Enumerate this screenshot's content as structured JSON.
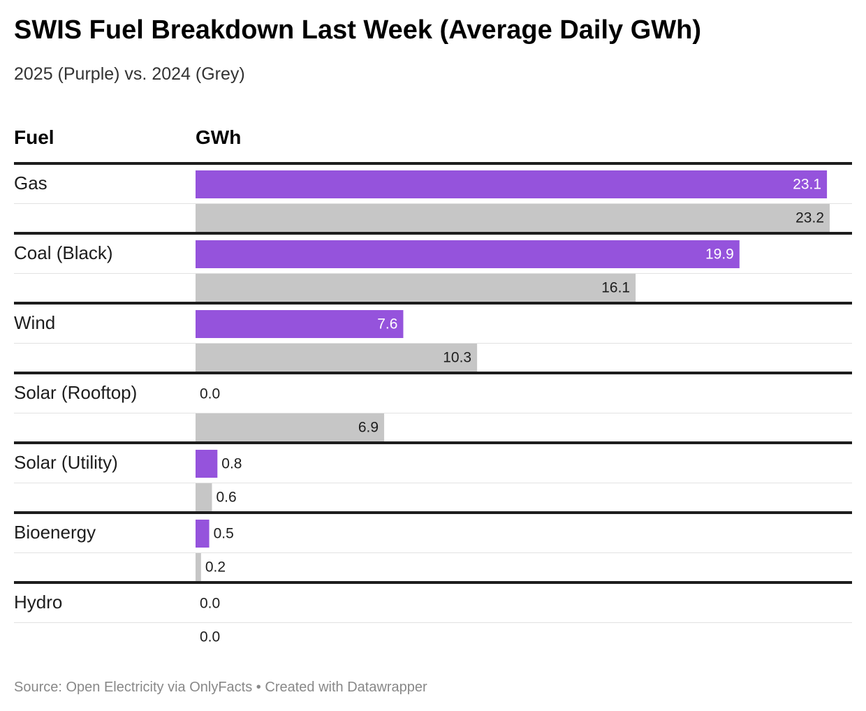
{
  "title": "SWIS Fuel Breakdown Last Week (Average Daily GWh)",
  "subtitle": "2025 (Purple) vs. 2024 (Grey)",
  "headers": {
    "fuel": "Fuel",
    "value": "GWh"
  },
  "footer": {
    "source": "Source: Open Electricity via OnlyFacts",
    "separator": "•",
    "credit": "Created with Datawrapper"
  },
  "colors": {
    "series_2025": "#9553dc",
    "series_2024": "#c6c6c6",
    "label_on_purple": "#ffffff",
    "label_on_grey": "#1d1d1d",
    "group_rule": "#1d1d1d",
    "row_rule": "#e2e2e2"
  },
  "chart_data": {
    "type": "bar",
    "orientation": "horizontal",
    "categories": [
      "Gas",
      "Coal (Black)",
      "Wind",
      "Solar (Rooftop)",
      "Solar (Utility)",
      "Bioenergy",
      "Hydro"
    ],
    "series": [
      {
        "name": "2025",
        "values": [
          23.1,
          19.9,
          7.6,
          0.0,
          0.8,
          0.5,
          0.0
        ]
      },
      {
        "name": "2024",
        "values": [
          23.2,
          16.1,
          10.3,
          6.9,
          0.6,
          0.2,
          0.0
        ]
      }
    ],
    "xlim": [
      0,
      23.2
    ],
    "value_format": "0.0"
  }
}
